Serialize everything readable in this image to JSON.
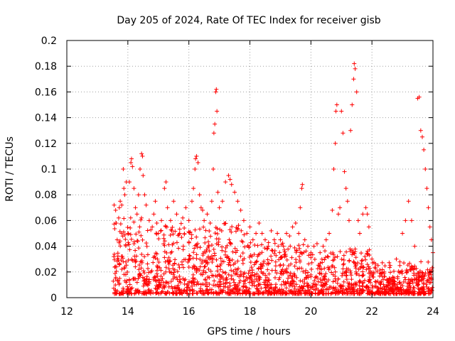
{
  "chart_data": {
    "type": "scatter",
    "title": "Day 205 of 2024, Rate Of TEC Index for receiver gisb",
    "xlabel": "GPS time / hours",
    "ylabel": "ROTI / TECUs",
    "xlim": [
      12,
      24
    ],
    "ylim": [
      0,
      0.2
    ],
    "xticks": [
      12,
      14,
      16,
      18,
      20,
      22,
      24
    ],
    "yticks": [
      0,
      0.02,
      0.04,
      0.06,
      0.08,
      0.1,
      0.12,
      0.14,
      0.16,
      0.18,
      0.2
    ],
    "ytick_labels": [
      "0",
      "0.02",
      "0.04",
      "0.06",
      "0.08",
      "0.1",
      "0.12",
      "0.14",
      "0.16",
      "0.18",
      "0.2"
    ],
    "grid": true,
    "marker": "+",
    "color": "#ff0000",
    "series": [
      {
        "name": "ROTI",
        "points": [
          [
            13.55,
            0.072
          ],
          [
            13.6,
            0.068
          ],
          [
            13.62,
            0.058
          ],
          [
            13.65,
            0.045
          ],
          [
            13.7,
            0.062
          ],
          [
            13.72,
            0.07
          ],
          [
            13.75,
            0.075
          ],
          [
            13.8,
            0.072
          ],
          [
            13.85,
            0.1
          ],
          [
            13.87,
            0.085
          ],
          [
            13.9,
            0.08
          ],
          [
            13.95,
            0.09
          ],
          [
            14.0,
            0.05
          ],
          [
            14.05,
            0.09
          ],
          [
            14.1,
            0.105
          ],
          [
            14.12,
            0.108
          ],
          [
            14.15,
            0.102
          ],
          [
            14.2,
            0.085
          ],
          [
            14.25,
            0.07
          ],
          [
            14.3,
            0.065
          ],
          [
            14.35,
            0.08
          ],
          [
            14.4,
            0.1
          ],
          [
            14.45,
            0.112
          ],
          [
            14.48,
            0.11
          ],
          [
            14.5,
            0.095
          ],
          [
            14.55,
            0.08
          ],
          [
            14.6,
            0.072
          ],
          [
            14.7,
            0.06
          ],
          [
            14.8,
            0.055
          ],
          [
            14.85,
            0.065
          ],
          [
            14.9,
            0.075
          ],
          [
            14.95,
            0.058
          ],
          [
            15.0,
            0.05
          ],
          [
            15.1,
            0.06
          ],
          [
            15.2,
            0.085
          ],
          [
            15.25,
            0.09
          ],
          [
            15.3,
            0.07
          ],
          [
            15.4,
            0.06
          ],
          [
            15.5,
            0.075
          ],
          [
            15.6,
            0.065
          ],
          [
            15.7,
            0.05
          ],
          [
            15.8,
            0.062
          ],
          [
            15.9,
            0.07
          ],
          [
            16.0,
            0.06
          ],
          [
            16.1,
            0.075
          ],
          [
            16.15,
            0.085
          ],
          [
            16.2,
            0.1
          ],
          [
            16.22,
            0.108
          ],
          [
            16.25,
            0.11
          ],
          [
            16.3,
            0.105
          ],
          [
            16.35,
            0.08
          ],
          [
            16.4,
            0.07
          ],
          [
            16.45,
            0.068
          ],
          [
            16.5,
            0.06
          ],
          [
            16.6,
            0.065
          ],
          [
            16.7,
            0.058
          ],
          [
            16.75,
            0.075
          ],
          [
            16.8,
            0.1
          ],
          [
            16.82,
            0.128
          ],
          [
            16.85,
            0.135
          ],
          [
            16.88,
            0.16
          ],
          [
            16.9,
            0.162
          ],
          [
            16.92,
            0.145
          ],
          [
            16.95,
            0.082
          ],
          [
            17.0,
            0.07
          ],
          [
            17.1,
            0.075
          ],
          [
            17.2,
            0.09
          ],
          [
            17.3,
            0.095
          ],
          [
            17.35,
            0.092
          ],
          [
            17.4,
            0.088
          ],
          [
            17.5,
            0.082
          ],
          [
            17.6,
            0.075
          ],
          [
            17.7,
            0.068
          ],
          [
            17.8,
            0.06
          ],
          [
            17.9,
            0.05
          ],
          [
            18.0,
            0.055
          ],
          [
            18.1,
            0.045
          ],
          [
            18.2,
            0.05
          ],
          [
            18.3,
            0.058
          ],
          [
            18.4,
            0.05
          ],
          [
            18.5,
            0.045
          ],
          [
            18.6,
            0.04
          ],
          [
            18.7,
            0.052
          ],
          [
            18.8,
            0.045
          ],
          [
            18.9,
            0.05
          ],
          [
            19.0,
            0.045
          ],
          [
            19.1,
            0.04
          ],
          [
            19.2,
            0.05
          ],
          [
            19.3,
            0.048
          ],
          [
            19.4,
            0.055
          ],
          [
            19.5,
            0.058
          ],
          [
            19.6,
            0.05
          ],
          [
            19.65,
            0.07
          ],
          [
            19.7,
            0.085
          ],
          [
            19.72,
            0.088
          ],
          [
            19.8,
            0.045
          ],
          [
            19.9,
            0.04
          ],
          [
            20.0,
            0.035
          ],
          [
            20.1,
            0.04
          ],
          [
            20.2,
            0.042
          ],
          [
            20.3,
            0.035
          ],
          [
            20.4,
            0.04
          ],
          [
            20.5,
            0.045
          ],
          [
            20.6,
            0.05
          ],
          [
            20.7,
            0.068
          ],
          [
            20.75,
            0.1
          ],
          [
            20.8,
            0.12
          ],
          [
            20.82,
            0.145
          ],
          [
            20.85,
            0.15
          ],
          [
            20.9,
            0.065
          ],
          [
            20.95,
            0.07
          ],
          [
            21.0,
            0.145
          ],
          [
            21.05,
            0.128
          ],
          [
            21.1,
            0.098
          ],
          [
            21.15,
            0.085
          ],
          [
            21.2,
            0.075
          ],
          [
            21.25,
            0.06
          ],
          [
            21.3,
            0.13
          ],
          [
            21.35,
            0.15
          ],
          [
            21.4,
            0.17
          ],
          [
            21.42,
            0.182
          ],
          [
            21.45,
            0.178
          ],
          [
            21.5,
            0.16
          ],
          [
            21.55,
            0.06
          ],
          [
            21.6,
            0.05
          ],
          [
            21.7,
            0.065
          ],
          [
            21.8,
            0.07
          ],
          [
            21.85,
            0.065
          ],
          [
            21.9,
            0.055
          ],
          [
            22.0,
            0.03
          ],
          [
            22.2,
            0.025
          ],
          [
            22.4,
            0.02
          ],
          [
            22.6,
            0.025
          ],
          [
            22.8,
            0.03
          ],
          [
            22.95,
            0.02
          ],
          [
            23.0,
            0.05
          ],
          [
            23.1,
            0.06
          ],
          [
            23.2,
            0.075
          ],
          [
            23.3,
            0.06
          ],
          [
            23.4,
            0.04
          ],
          [
            23.5,
            0.155
          ],
          [
            23.55,
            0.156
          ],
          [
            23.6,
            0.13
          ],
          [
            23.65,
            0.125
          ],
          [
            23.7,
            0.115
          ],
          [
            23.75,
            0.1
          ],
          [
            23.8,
            0.085
          ],
          [
            23.85,
            0.07
          ],
          [
            23.9,
            0.055
          ],
          [
            23.95,
            0.045
          ],
          [
            24.0,
            0.035
          ]
        ]
      }
    ]
  }
}
